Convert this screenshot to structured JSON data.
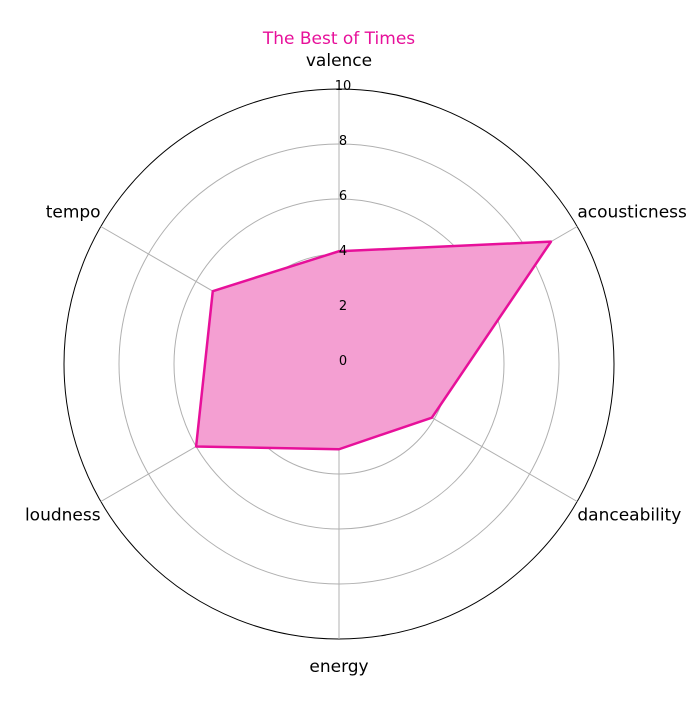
{
  "chart_data": {
    "type": "radar",
    "title": "The Best of Times",
    "categories": [
      "valence",
      "acousticness",
      "danceability",
      "energy",
      "loudness",
      "tempo"
    ],
    "series": [
      {
        "values": [
          4.1,
          8.9,
          3.9,
          3.1,
          6.0,
          5.3
        ]
      }
    ],
    "rlim": [
      0,
      10
    ],
    "rticks": [
      "0",
      "2",
      "4",
      "6",
      "8",
      "10"
    ],
    "grid": true,
    "colors": {
      "line": "#e7109a",
      "fill": "#f49fd2",
      "title": "#e7109a"
    }
  }
}
